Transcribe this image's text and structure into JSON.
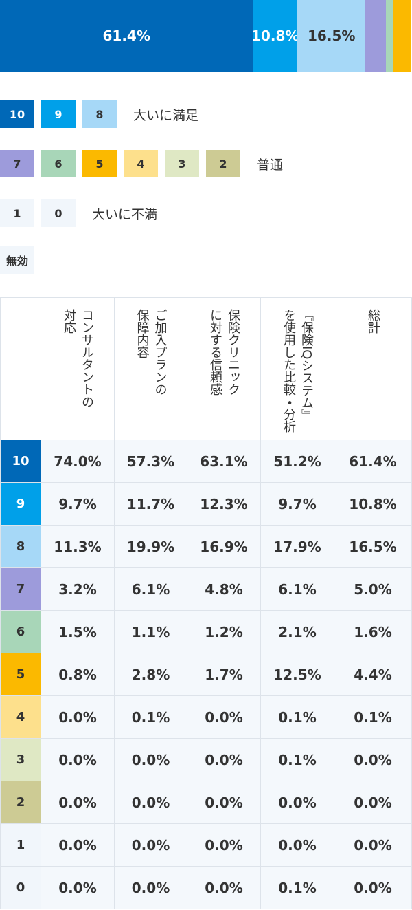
{
  "bar": {
    "xlim": [
      0,
      100
    ]
  },
  "legend": [
    {
      "items": [
        {
          "name": "10",
          "color": "#0068b7"
        },
        {
          "name": "9",
          "color": "#00a0e9"
        },
        {
          "name": "8",
          "color": "#a6d8f7"
        }
      ],
      "label": "大いに満足"
    },
    {
      "items": [
        {
          "name": "7",
          "color": "#9d9bdb"
        },
        {
          "name": "6",
          "color": "#a8d6b8"
        },
        {
          "name": "5",
          "color": "#fbb900"
        },
        {
          "name": "4",
          "color": "#fde08c"
        },
        {
          "name": "3",
          "color": "#dfe8c4"
        },
        {
          "name": "2",
          "color": "#cdcb94"
        }
      ],
      "label": "普通"
    },
    {
      "items": [
        {
          "name": "1",
          "color": "#f1f6fb"
        },
        {
          "name": "0",
          "color": "#f1f6fb"
        }
      ],
      "label": "大いに不満"
    },
    {
      "items": [
        {
          "name": "無効",
          "color": "#f1f6fb"
        }
      ]
    }
  ],
  "table": {
    "columns": [
      [
        "コンサルタントの",
        "対応"
      ],
      [
        "ご加入プランの",
        "保障内容"
      ],
      [
        "保険クリニック",
        "に対する信頼感"
      ],
      [
        "『保険IQシステム』",
        "を使用した比較・分析"
      ],
      [
        "総計"
      ]
    ],
    "rows": [
      {
        "label": "10",
        "color": "#0068b7",
        "values": [
          74.0,
          57.3,
          63.1,
          51.2,
          61.4
        ],
        "value_labels": [
          "74.0%",
          "57.3%",
          "63.1%",
          "51.2%",
          "61.4%"
        ]
      },
      {
        "label": "9",
        "color": "#00a0e9",
        "values": [
          9.7,
          11.7,
          12.3,
          9.7,
          10.8
        ],
        "value_labels": [
          "9.7%",
          "11.7%",
          "12.3%",
          "9.7%",
          "10.8%"
        ]
      },
      {
        "label": "8",
        "color": "#a6d8f7",
        "values": [
          11.3,
          19.9,
          16.9,
          17.9,
          16.5
        ],
        "value_labels": [
          "11.3%",
          "19.9%",
          "16.9%",
          "17.9%",
          "16.5%"
        ]
      },
      {
        "label": "7",
        "color": "#9d9bdb",
        "values": [
          3.2,
          6.1,
          4.8,
          6.1,
          5.0
        ],
        "value_labels": [
          "3.2%",
          "6.1%",
          "4.8%",
          "6.1%",
          "5.0%"
        ]
      },
      {
        "label": "6",
        "color": "#a8d6b8",
        "values": [
          1.5,
          1.1,
          1.2,
          2.1,
          1.6
        ],
        "value_labels": [
          "1.5%",
          "1.1%",
          "1.2%",
          "2.1%",
          "1.6%"
        ]
      },
      {
        "label": "5",
        "color": "#fbb900",
        "values": [
          0.8,
          2.8,
          1.7,
          12.5,
          4.4
        ],
        "value_labels": [
          "0.8%",
          "2.8%",
          "1.7%",
          "12.5%",
          "4.4%"
        ]
      },
      {
        "label": "4",
        "color": "#fde08c",
        "values": [
          0.0,
          0.1,
          0.0,
          0.1,
          0.1
        ],
        "value_labels": [
          "0.0%",
          "0.1%",
          "0.0%",
          "0.1%",
          "0.1%"
        ]
      },
      {
        "label": "3",
        "color": "#dfe8c4",
        "values": [
          0.0,
          0.0,
          0.0,
          0.1,
          0.0
        ],
        "value_labels": [
          "0.0%",
          "0.0%",
          "0.0%",
          "0.1%",
          "0.0%"
        ]
      },
      {
        "label": "2",
        "color": "#cdcb94",
        "values": [
          0.0,
          0.0,
          0.0,
          0.0,
          0.0
        ],
        "value_labels": [
          "0.0%",
          "0.0%",
          "0.0%",
          "0.0%",
          "0.0%"
        ]
      },
      {
        "label": "1",
        "color": "#f1f6fb",
        "values": [
          0.0,
          0.0,
          0.0,
          0.0,
          0.0
        ],
        "value_labels": [
          "0.0%",
          "0.0%",
          "0.0%",
          "0.0%",
          "0.0%"
        ]
      },
      {
        "label": "0",
        "color": "#f1f6fb",
        "values": [
          0.0,
          0.0,
          0.0,
          0.1,
          0.0
        ],
        "value_labels": [
          "0.0%",
          "0.0%",
          "0.0%",
          "0.1%",
          "0.0%"
        ]
      }
    ]
  }
}
